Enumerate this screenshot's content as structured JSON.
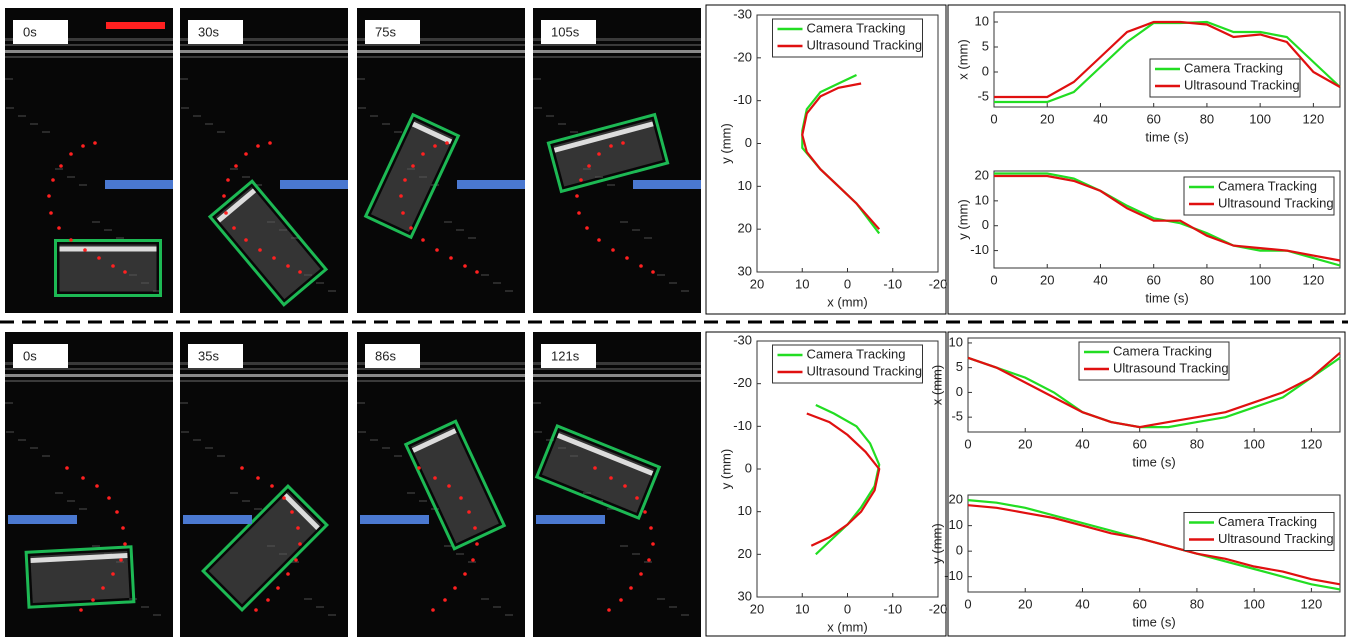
{
  "frame_labels": [
    "0s",
    "30s",
    "75s",
    "105s",
    "0s",
    "35s",
    "86s",
    "121s"
  ],
  "chart_data": [
    {
      "type": "line",
      "xlabel": "x (mm)",
      "ylabel": "y (mm)",
      "xlim": [
        20,
        -20
      ],
      "ylim": [
        30,
        -30
      ],
      "xticks": [
        20,
        10,
        0,
        -10,
        -20
      ],
      "yticks": [
        -30,
        -20,
        -10,
        0,
        10,
        20,
        30
      ],
      "legend": "upper center",
      "series": [
        {
          "name": "Camera Tracking",
          "color": "#22dd22",
          "x": [
            -2,
            2,
            6,
            9,
            10,
            10,
            6,
            2,
            -2,
            -7
          ],
          "values": [
            -16,
            -14,
            -12,
            -8,
            -3,
            1,
            6,
            10,
            14,
            21
          ]
        },
        {
          "name": "Ultrasound Tracking",
          "color": "#e01010",
          "x": [
            -3,
            2,
            6,
            9,
            10,
            9,
            6,
            2,
            -2,
            -7
          ],
          "values": [
            -14,
            -13,
            -11,
            -7,
            -2,
            2,
            6,
            10,
            14,
            20
          ]
        }
      ]
    },
    {
      "type": "line",
      "xlabel": "time (s)",
      "ylabel": "x (mm)",
      "xlim": [
        0,
        130
      ],
      "ylim": [
        -7,
        12
      ],
      "xticks": [
        0,
        20,
        40,
        60,
        80,
        100,
        120
      ],
      "yticks": [
        -5,
        0,
        5,
        10
      ],
      "legend": "lower right",
      "x": [
        0,
        10,
        20,
        30,
        40,
        50,
        60,
        70,
        80,
        90,
        100,
        110,
        120,
        130
      ],
      "series": [
        {
          "name": "Camera Tracking",
          "color": "#22dd22",
          "values": [
            -6,
            -6,
            -6,
            -4,
            1,
            6,
            9.8,
            9.8,
            10,
            8,
            8,
            7,
            2,
            -3
          ]
        },
        {
          "name": "Ultrasound Tracking",
          "color": "#e01010",
          "values": [
            -5,
            -5,
            -5,
            -2,
            3,
            8,
            10,
            10,
            9.5,
            7,
            7.5,
            6,
            0,
            -3
          ]
        }
      ]
    },
    {
      "type": "line",
      "xlabel": "time (s)",
      "ylabel": "y (mm)",
      "xlim": [
        0,
        130
      ],
      "ylim": [
        -17,
        22
      ],
      "xticks": [
        0,
        20,
        40,
        60,
        80,
        100,
        120
      ],
      "yticks": [
        -10,
        0,
        10,
        20
      ],
      "legend": "upper right",
      "x": [
        0,
        10,
        20,
        30,
        40,
        50,
        60,
        70,
        80,
        90,
        100,
        110,
        120,
        130
      ],
      "series": [
        {
          "name": "Camera Tracking",
          "color": "#22dd22",
          "values": [
            21,
            21,
            21,
            19,
            14,
            8,
            3,
            1,
            -3,
            -8,
            -10,
            -10,
            -13,
            -16
          ]
        },
        {
          "name": "Ultrasound Tracking",
          "color": "#e01010",
          "values": [
            20,
            20,
            20,
            18,
            14,
            7,
            2,
            2,
            -4,
            -8,
            -9,
            -10,
            -12,
            -14
          ]
        }
      ]
    },
    {
      "type": "line",
      "xlabel": "x (mm)",
      "ylabel": "y (mm)",
      "xlim": [
        20,
        -20
      ],
      "ylim": [
        30,
        -30
      ],
      "xticks": [
        20,
        10,
        0,
        -10,
        -20
      ],
      "yticks": [
        -30,
        -20,
        -10,
        0,
        10,
        20,
        30
      ],
      "legend": "upper center",
      "series": [
        {
          "name": "Camera Tracking",
          "color": "#22dd22",
          "x": [
            7,
            3,
            -2,
            -5,
            -7,
            -6,
            -3,
            0,
            4,
            7
          ],
          "values": [
            -15,
            -13,
            -10,
            -6,
            -1,
            4,
            9,
            13,
            17,
            20
          ]
        },
        {
          "name": "Ultrasound Tracking",
          "color": "#e01010",
          "x": [
            9,
            4,
            0,
            -4,
            -7,
            -6,
            -3,
            0,
            4,
            8
          ],
          "values": [
            -13,
            -11,
            -8,
            -4,
            0,
            5,
            10,
            13,
            16,
            18
          ]
        }
      ]
    },
    {
      "type": "line",
      "xlabel": "time (s)",
      "ylabel": "x (mm)",
      "xlim": [
        0,
        130
      ],
      "ylim": [
        -8,
        11
      ],
      "xticks": [
        0,
        20,
        40,
        60,
        80,
        100,
        120
      ],
      "yticks": [
        -5,
        0,
        5,
        10
      ],
      "legend": "upper center",
      "x": [
        0,
        10,
        20,
        30,
        40,
        50,
        60,
        70,
        80,
        90,
        100,
        110,
        120,
        130
      ],
      "series": [
        {
          "name": "Camera Tracking",
          "color": "#22dd22",
          "values": [
            7,
            5,
            3,
            0,
            -4,
            -6,
            -7,
            -7,
            -6,
            -5,
            -3,
            -1,
            3,
            7
          ]
        },
        {
          "name": "Ultrasound Tracking",
          "color": "#e01010",
          "values": [
            7,
            5,
            2,
            -1,
            -4,
            -6,
            -7,
            -6,
            -5,
            -4,
            -2,
            0,
            3,
            8
          ]
        }
      ]
    },
    {
      "type": "line",
      "xlabel": "time (s)",
      "ylabel": "y (mm)",
      "xlim": [
        0,
        130
      ],
      "ylim": [
        -16,
        22
      ],
      "xticks": [
        0,
        20,
        40,
        60,
        80,
        100,
        120
      ],
      "yticks": [
        -10,
        0,
        10,
        20
      ],
      "legend": "center right",
      "x": [
        0,
        10,
        20,
        30,
        40,
        50,
        60,
        70,
        80,
        90,
        100,
        110,
        120,
        130
      ],
      "series": [
        {
          "name": "Camera Tracking",
          "color": "#22dd22",
          "values": [
            20,
            19,
            17,
            14,
            11,
            8,
            5,
            2,
            -1,
            -4,
            -7,
            -10,
            -13,
            -15
          ]
        },
        {
          "name": "Ultrasound Tracking",
          "color": "#e01010",
          "values": [
            18,
            17,
            15,
            13,
            10,
            7,
            5,
            2,
            -1,
            -3,
            -6,
            -8,
            -11,
            -13
          ]
        }
      ]
    }
  ]
}
